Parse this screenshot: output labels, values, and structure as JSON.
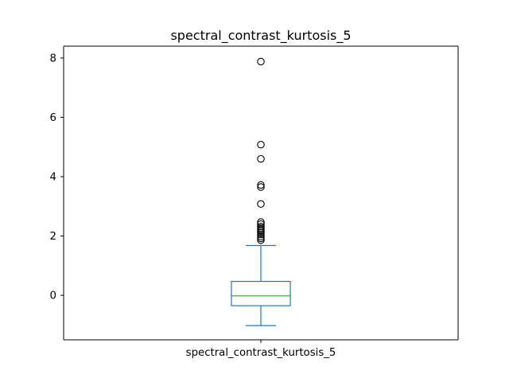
{
  "chart_data": {
    "type": "box",
    "title": "spectral_contrast_kurtosis_5",
    "categories": [
      "spectral_contrast_kurtosis_5"
    ],
    "xlabel": "",
    "ylabel": "",
    "ylim": [
      -1.5,
      8.4
    ],
    "yticks": [
      0,
      2,
      4,
      6,
      8
    ],
    "grid": false,
    "legend": "none",
    "box": {
      "whisker_low": -1.02,
      "q1": -0.35,
      "median": -0.02,
      "q3": 0.47,
      "whisker_high": 1.68
    },
    "outliers": [
      7.88,
      5.08,
      4.6,
      3.72,
      3.65,
      3.08,
      2.47,
      2.4,
      2.32,
      2.27,
      2.22,
      2.17,
      2.12,
      2.05,
      1.98,
      1.92,
      1.86
    ],
    "colors": {
      "box": "#1f77b4",
      "median": "#2ca02c",
      "outlier": "#000000",
      "axes": "#000000"
    }
  }
}
